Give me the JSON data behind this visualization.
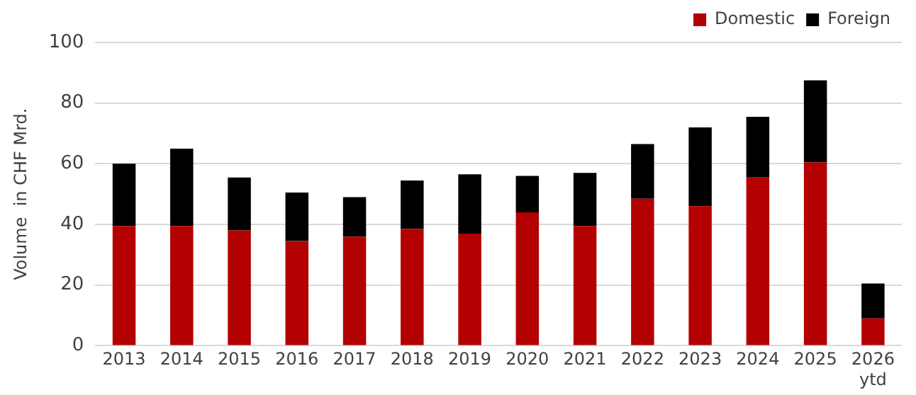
{
  "chart_data": {
    "type": "bar",
    "stacked": true,
    "ylabel": "Volume  in CHF Mrd.",
    "categories": [
      "2013",
      "2014",
      "2015",
      "2016",
      "2017",
      "2018",
      "2019",
      "2020",
      "2021",
      "2022",
      "2023",
      "2024",
      "2025",
      "2026 ytd"
    ],
    "series": [
      {
        "name": "Domestic",
        "color": "#b30000",
        "values": [
          39.5,
          39.5,
          38,
          34.5,
          36,
          38.5,
          37,
          44,
          39.5,
          48.5,
          46,
          55.5,
          60.5,
          9
        ]
      },
      {
        "name": "Foreign",
        "color": "#000000",
        "values": [
          20.5,
          25.5,
          17.5,
          16,
          13,
          16,
          19.5,
          12,
          17.5,
          18,
          26,
          20,
          27,
          11.5
        ]
      }
    ],
    "ylim": [
      0,
      100
    ],
    "yticks": [
      0,
      20,
      40,
      60,
      80,
      100
    ],
    "grid": "y",
    "legend": "top right"
  }
}
